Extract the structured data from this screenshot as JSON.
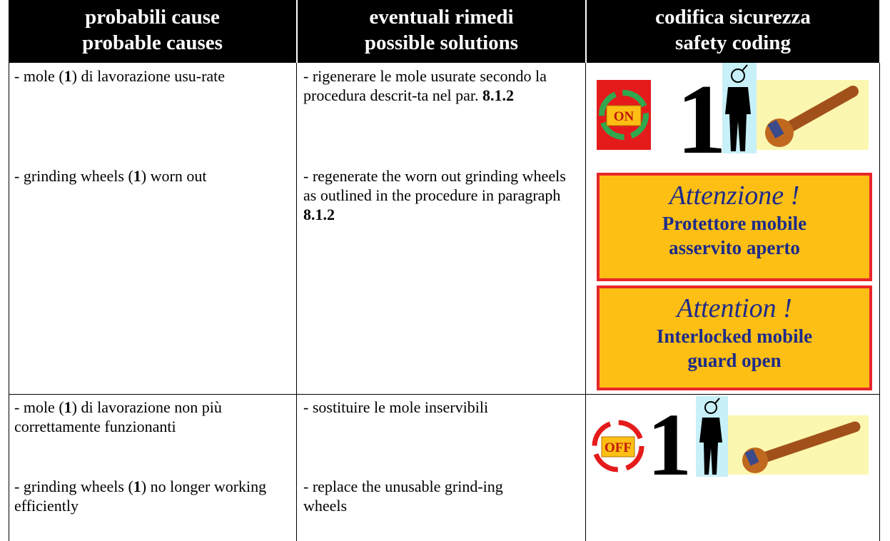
{
  "table": {
    "header": [
      [
        "probabili cause",
        "probable causes"
      ],
      [
        "eventuali rimedi",
        "possible solutions"
      ],
      [
        "codifica sicurezza",
        "safety coding"
      ]
    ],
    "rows": [
      {
        "causes": [
          {
            "pre": "- mole (",
            "bold": "1",
            "post": ") di lavorazione usu-rate"
          },
          {
            "pre": "- grinding wheels (",
            "bold": "1",
            "post": ") worn out"
          }
        ],
        "solutions": [
          {
            "pre": "- rigenerare le mole usurate secondo la procedura descrit-ta nel par. ",
            "bold": "8.1.2"
          },
          {
            "pre": "- regenerate the worn out grinding wheels as outlined in the procedure in paragraph",
            "bold": "8.1.2"
          }
        ],
        "safety": {
          "state": "ON",
          "operators": "1",
          "warnings": [
            {
              "title": "Attenzione !",
              "lines": [
                "Protettore mobile",
                "asservito aperto"
              ]
            },
            {
              "title": "Attention !",
              "lines": [
                "Interlocked mobile",
                "guard open"
              ]
            }
          ]
        }
      },
      {
        "causes": [
          {
            "pre": "- mole (",
            "bold": "1",
            "post": ") di lavorazione non più correttamente funzionanti"
          },
          {
            "pre": "- grinding wheels (",
            "bold": "1",
            "post": ") no longer working efficiently"
          }
        ],
        "solutions": [
          {
            "pre": "- sostituire le mole inservibili"
          },
          {
            "pre": "- replace the unusable grind-ing wheels"
          }
        ],
        "safety": {
          "state": "OFF",
          "operators": "1"
        }
      }
    ]
  }
}
